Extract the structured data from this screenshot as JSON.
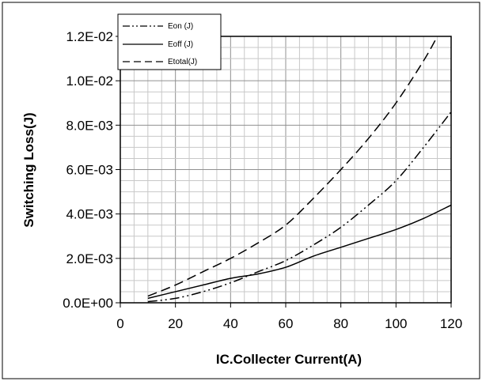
{
  "chart_data": {
    "type": "line",
    "title": "",
    "xlabel": "IC.Collecter Current(A)",
    "ylabel": "Switching Loss(J)",
    "xlim": [
      0,
      120
    ],
    "ylim": [
      0,
      0.012
    ],
    "xticks": [
      0,
      20,
      40,
      60,
      80,
      100,
      120
    ],
    "xtick_labels": [
      "0",
      "20",
      "40",
      "60",
      "80",
      "100",
      "120"
    ],
    "yticks": [
      0,
      0.002,
      0.004,
      0.006,
      0.008,
      0.01,
      0.012
    ],
    "ytick_labels": [
      "0.0E+00",
      "2.0E-03",
      "4.0E-03",
      "6.0E-03",
      "8.0E-03",
      "1.0E-02",
      "1.2E-02"
    ],
    "grid": true,
    "legend_position": "top-left",
    "series": [
      {
        "name": "Eon (J)",
        "style": "dash-dot",
        "x": [
          10,
          20,
          30,
          40,
          50,
          60,
          70,
          80,
          90,
          100,
          110,
          120
        ],
        "y": [
          5e-05,
          0.0002,
          0.0005,
          0.0009,
          0.0014,
          0.0019,
          0.0026,
          0.0034,
          0.0044,
          0.0055,
          0.007,
          0.0086
        ]
      },
      {
        "name": "Eoff (J)",
        "style": "solid",
        "x": [
          10,
          20,
          30,
          40,
          50,
          60,
          70,
          80,
          90,
          100,
          110,
          120
        ],
        "y": [
          0.0002,
          0.0005,
          0.0008,
          0.0011,
          0.0013,
          0.0016,
          0.0021,
          0.0025,
          0.0029,
          0.0033,
          0.0038,
          0.0044
        ]
      },
      {
        "name": "Etotal(J)",
        "style": "dashed",
        "x": [
          10,
          20,
          30,
          40,
          50,
          60,
          70,
          80,
          90,
          100,
          110,
          115
        ],
        "y": [
          0.0003,
          0.0008,
          0.0014,
          0.002,
          0.0027,
          0.0035,
          0.0047,
          0.006,
          0.0074,
          0.009,
          0.0109,
          0.012
        ]
      }
    ]
  }
}
